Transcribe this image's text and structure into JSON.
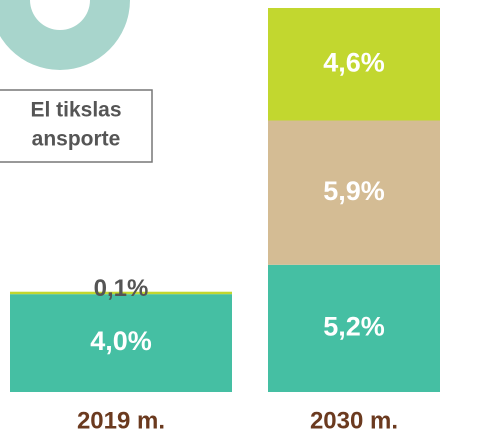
{
  "chart_data": {
    "type": "bar",
    "stacked": true,
    "categories": [
      "2019 m.",
      "2030 m."
    ],
    "series": [
      {
        "color": "#45bfa3",
        "values": [
          4.0,
          5.2
        ],
        "value_labels": [
          "4,0%",
          "5,2%"
        ]
      },
      {
        "color": "#d4bc94",
        "values": [
          null,
          5.9
        ],
        "value_labels": [
          null,
          "5,9%"
        ]
      },
      {
        "color": "#c2d72f",
        "values": [
          0.1,
          4.6
        ],
        "value_labels": [
          "0,1%",
          "4,6%"
        ]
      }
    ],
    "annotations": [
      "El tikslas",
      "ansporte"
    ]
  }
}
